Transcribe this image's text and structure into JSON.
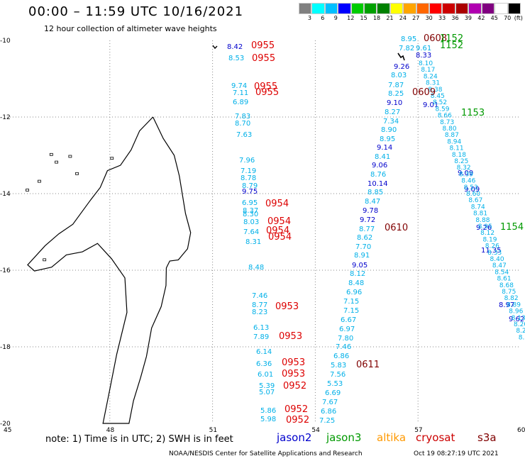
{
  "title": "00:00 – 11:59 UTC 10/16/2021",
  "subtitle": "12 hour collection of altimeter wave heights",
  "legend": {
    "unit": "(ft)",
    "colors": [
      "#808080",
      "#00ffff",
      "#00bfff",
      "#0000ff",
      "#00cc00",
      "#00a000",
      "#008000",
      "#ffff00",
      "#ffa500",
      "#ff6600",
      "#ff0000",
      "#cc0000",
      "#aa0000",
      "#b000b0",
      "#800080",
      "#ffffff",
      "#000000"
    ],
    "ticks": [
      "3",
      "6",
      "9",
      "12",
      "15",
      "18",
      "21",
      "24",
      "27",
      "30",
      "33",
      "36",
      "39",
      "42",
      "45",
      "70"
    ]
  },
  "axes": {
    "lat_labels": [
      "-10",
      "-12",
      "-14",
      "-16",
      "-18",
      "-20"
    ],
    "lon_labels": [
      "45",
      "48",
      "51",
      "54",
      "57",
      "60"
    ]
  },
  "map_data": {
    "land": "Madagascar (northern and central east coast)",
    "tracks": [
      {
        "satellite": "cryosat",
        "times": [
          "0955",
          "0955",
          "0955",
          "0955",
          "0954",
          "0954",
          "0954",
          "0954",
          "0953",
          "0953",
          "0953",
          "0953",
          "0952",
          "0952",
          "0952"
        ]
      },
      {
        "satellite": "s3a",
        "times": [
          "0608",
          "0609",
          "0610",
          "0611"
        ]
      },
      {
        "satellite": "jason3",
        "times": [
          "1152",
          "1152",
          "1153",
          "1154"
        ]
      }
    ],
    "values": {
      "west_track": [
        "8.42",
        "8.53",
        "9.74",
        "7.11",
        "6.89",
        "7.83",
        "8.70",
        "7.63",
        "7.96",
        "7.19",
        "8.78",
        "8.79",
        "9.75",
        "6.95",
        "8.37",
        "8.30",
        "8.03",
        "7.64",
        "8.31",
        "8.48",
        "7.46",
        "8.77",
        "8.23",
        "6.13",
        "7.89",
        "6.14",
        "6.36",
        "6.01",
        "5.39",
        "5.07",
        "5.86",
        "5.98"
      ],
      "middle_track": [
        "8.95",
        "7.82",
        "9.61",
        "9.26",
        "8.03",
        "7.87",
        "8.25",
        "9.10",
        "8.27",
        "7.34",
        "8.90",
        "8.95",
        "9.14",
        "8.41",
        "9.06",
        "8.76",
        "10.14",
        "8.85",
        "8.47",
        "9.78",
        "9.72",
        "8.77",
        "8.62",
        "7.70",
        "8.91",
        "9.05",
        "8.12",
        "8.48",
        "6.96",
        "7.15",
        "7.15",
        "6.67",
        "6.97",
        "7.80",
        "7.46",
        "6.86",
        "5.83",
        "7.56",
        "5.53",
        "6.69",
        "7.67",
        "6.86",
        "7.25"
      ],
      "east_track": [
        "8.33",
        "9.01",
        "9.09",
        "9.09",
        "9.26",
        "11.35",
        "8.97",
        "9.62"
      ]
    }
  },
  "note": "note: 1) Time is in UTC; 2) SWH is in feet",
  "satellites": [
    {
      "name": "jason2",
      "color": "#0000cc"
    },
    {
      "name": "jason3",
      "color": "#009900"
    },
    {
      "name": "altika",
      "color": "#ff9900"
    },
    {
      "name": "cryosat",
      "color": "#cc0000"
    },
    {
      "name": "s3a",
      "color": "#800000"
    }
  ],
  "credit": "NOAA/NESDIS Center for Satellite Applications and Research",
  "timestamp": "Oct 19 08:27:19 UTC 2021"
}
